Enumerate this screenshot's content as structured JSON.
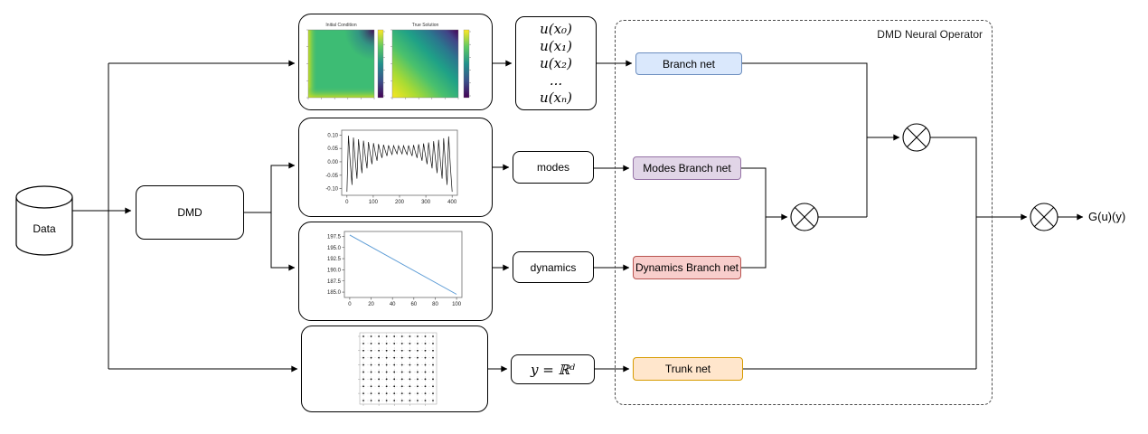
{
  "diagram": {
    "group_title": "DMD Neural Operator",
    "operator_symbol": "⊗",
    "nodes": {
      "data": {
        "label": "Data",
        "shape": "cylinder"
      },
      "dmd": {
        "label": "DMD"
      },
      "u_samples": {
        "lines": [
          "u(x₀)",
          "u(x₁)",
          "u(x₂)",
          "...",
          "u(xₙ)"
        ]
      },
      "modes": {
        "label": "modes"
      },
      "dynamics": {
        "label": "dynamics"
      },
      "y_domain": {
        "label": "y = ℝᵈ"
      },
      "branch_net": {
        "label": "Branch net",
        "fill": "#dae8fc",
        "stroke": "#6c8ebf"
      },
      "modes_branch_net": {
        "label": "Modes Branch net",
        "fill": "#e1d5e7",
        "stroke": "#9673a6"
      },
      "dynamics_branch_net": {
        "label": "Dynamics Branch net",
        "fill": "#f8cecc",
        "stroke": "#b85450"
      },
      "trunk_net": {
        "label": "Trunk net",
        "fill": "#ffe6cc",
        "stroke": "#d79b00"
      },
      "output": {
        "label": "G(u)(y)"
      }
    },
    "edges": [
      {
        "from": "Data",
        "to": "solution snapshots plot"
      },
      {
        "from": "Data",
        "to": "DMD"
      },
      {
        "from": "Data",
        "to": "sensor grid plot"
      },
      {
        "from": "DMD",
        "to": "modes plot"
      },
      {
        "from": "DMD",
        "to": "dynamics plot"
      },
      {
        "from": "solution snapshots plot",
        "to": "u(x) samples"
      },
      {
        "from": "modes plot",
        "to": "modes"
      },
      {
        "from": "dynamics plot",
        "to": "dynamics"
      },
      {
        "from": "sensor grid plot",
        "to": "y = R^d"
      },
      {
        "from": "u(x) samples",
        "to": "Branch net"
      },
      {
        "from": "modes",
        "to": "Modes Branch net"
      },
      {
        "from": "dynamics",
        "to": "Dynamics Branch net"
      },
      {
        "from": "y = R^d",
        "to": "Trunk net"
      },
      {
        "from": "Modes Branch net + Dynamics Branch net",
        "to": "tensor product 1",
        "operator": "⊗"
      },
      {
        "from": "Branch net + tensor product 1",
        "to": "tensor product 2",
        "operator": "⊗"
      },
      {
        "from": "tensor product 2 + Trunk net",
        "to": "tensor product 3",
        "operator": "⊗"
      },
      {
        "from": "tensor product 3",
        "to": "G(u)(y)"
      }
    ]
  },
  "chart_data": [
    {
      "type": "heatmap",
      "name": "solution snapshots",
      "colormap": "viridis",
      "panels": [
        {
          "title": "Initial Condition",
          "pattern": "uniform green interior, yellow-green band along left and bottom edges, dark purple patch in top-right corner",
          "colorbar": true
        },
        {
          "title": "True Solution",
          "pattern": "smooth diagonal gradient from yellow at bottom-left to dark purple at top-right",
          "colorbar": true
        }
      ]
    },
    {
      "type": "line",
      "name": "modes",
      "line_color": "#111111",
      "x_ticks": [
        0,
        100,
        200,
        300,
        400
      ],
      "y_ticks": [
        0.1,
        0.05,
        0.0,
        -0.05,
        -0.1
      ],
      "y_tick_decimals": 2,
      "xlim": [
        -20,
        420
      ],
      "ylim": [
        -0.125,
        0.118
      ],
      "waveform": {
        "shape": "sawtooth oscillation",
        "cycles": 21,
        "x_start": 0,
        "x_end": 400,
        "peak_edge": 0.1,
        "peak_mid": 0.06,
        "trough_edge": -0.112,
        "trough_mid": 0.03
      }
    },
    {
      "type": "line",
      "name": "dynamics",
      "line_color": "#5b9bd5",
      "x_ticks": [
        0,
        20,
        40,
        60,
        80,
        100
      ],
      "y_ticks": [
        197.5,
        195.0,
        192.5,
        190.0,
        187.5,
        185.0
      ],
      "y_tick_decimals": 1,
      "xlim": [
        -5,
        105
      ],
      "ylim": [
        183.8,
        198.6
      ],
      "points": {
        "x": [
          0,
          100
        ],
        "y": [
          197.8,
          184.5
        ]
      }
    },
    {
      "type": "scatter",
      "name": "sensor grid",
      "rows": 10,
      "cols": 10,
      "marker_color": "#111111",
      "grid_style": "light dashed gridlines through each row and column of points"
    }
  ]
}
